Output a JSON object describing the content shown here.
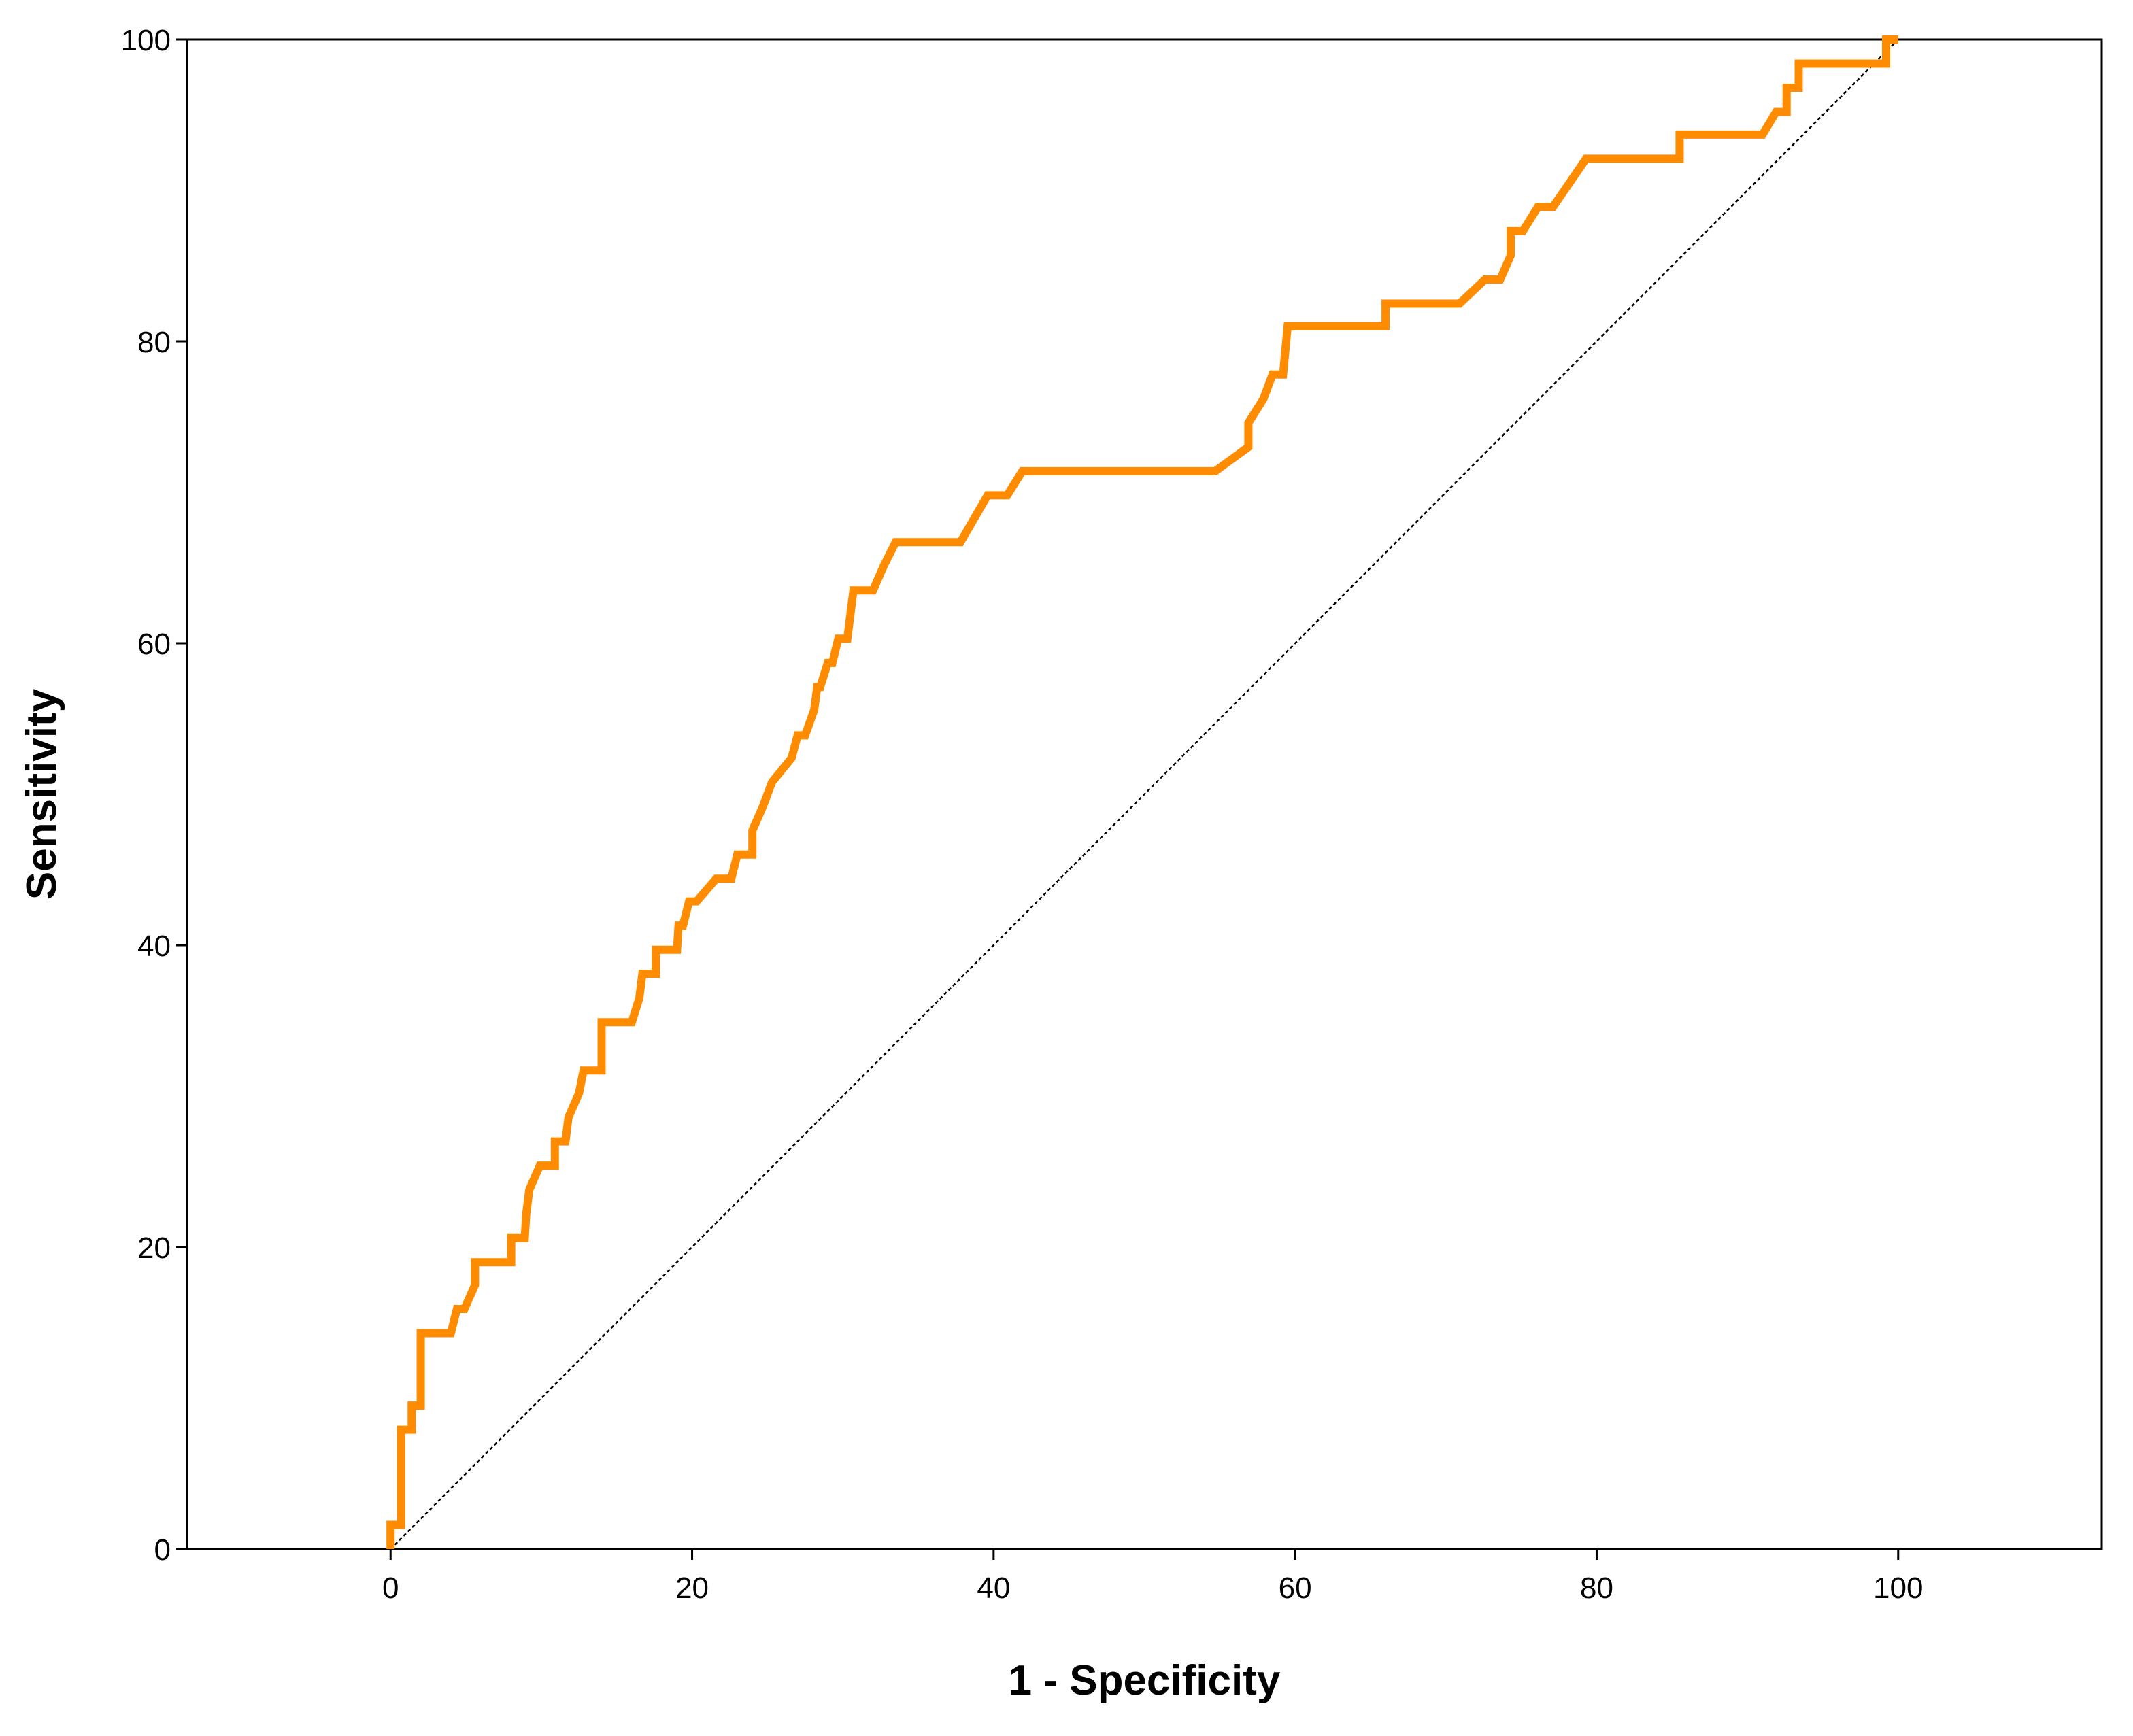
{
  "chart_data": {
    "type": "line",
    "title": "",
    "xlabel": "1 - Specificity",
    "ylabel": "Sensitivity",
    "xlim": [
      -13.5,
      113.5
    ],
    "ylim": [
      0,
      100
    ],
    "x_ticks": [
      "0",
      "20",
      "40",
      "60",
      "80",
      "100"
    ],
    "y_ticks": [
      "0",
      "20",
      "40",
      "60",
      "80",
      "100"
    ],
    "grid": false,
    "legend": "none",
    "colors": {
      "roc_curve": "#FF8C00",
      "reference_line": "#000000",
      "frame": "#000000"
    },
    "series": [
      {
        "style": "step-line",
        "x": [
          0,
          0,
          0.7,
          0.7,
          1.4,
          1.4,
          2,
          2,
          4,
          4.4,
          4.9,
          5.6,
          5.6,
          8,
          8,
          8.9,
          9,
          9.2,
          9.9,
          10.9,
          10.9,
          11.6,
          11.8,
          12.5,
          12.8,
          14,
          14,
          16,
          16.5,
          16.7,
          16.8,
          17.6,
          17.6,
          19,
          19.1,
          19.4,
          19.8,
          20.3,
          21.6,
          22.6,
          23,
          24,
          24,
          24.7,
          25.3,
          26.6,
          27,
          27.5,
          28.1,
          28.3,
          28.5,
          29,
          29.3,
          29.7,
          30.3,
          30.5,
          30.7,
          32,
          32.7,
          33.5,
          37.8,
          39.6,
          40.9,
          41.9,
          54.7,
          56.9,
          56.9,
          57.9,
          58.5,
          59.2,
          59.5,
          66,
          66,
          70.9,
          72.6,
          73.6,
          74.3,
          74.3,
          75.1,
          76.1,
          77.1,
          78.2,
          79.3,
          80.1,
          85.5,
          85.5,
          91,
          91.9,
          92.6,
          92.6,
          93.4,
          93.4,
          93.7,
          98,
          99.2,
          99.2,
          100
        ],
        "y": [
          0,
          1.6,
          1.6,
          7.9,
          7.9,
          9.5,
          9.5,
          14.3,
          14.3,
          15.9,
          15.9,
          17.5,
          19,
          19,
          20.6,
          20.6,
          22.2,
          23.8,
          25.4,
          25.4,
          27,
          27,
          28.6,
          30.2,
          31.7,
          31.7,
          34.9,
          34.9,
          36.5,
          38.1,
          38.1,
          38.1,
          39.7,
          39.7,
          41.3,
          41.3,
          42.9,
          42.9,
          44.4,
          44.4,
          46,
          46,
          47.6,
          49.2,
          50.8,
          52.4,
          53.9,
          53.9,
          55.6,
          57.1,
          57.1,
          58.7,
          58.7,
          60.3,
          60.3,
          61.9,
          63.5,
          63.5,
          65.1,
          66.7,
          66.7,
          69.8,
          69.8,
          71.4,
          71.4,
          73,
          74.6,
          76.2,
          77.8,
          77.8,
          81,
          81,
          82.5,
          82.5,
          84.1,
          84.1,
          85.7,
          87.3,
          87.3,
          88.9,
          88.9,
          90.5,
          92.1,
          92.1,
          92.1,
          93.7,
          93.7,
          95.2,
          95.2,
          96.8,
          96.8,
          98.4,
          98.4,
          98.4,
          98.4,
          100,
          100
        ]
      },
      {
        "style": "reference-diagonal",
        "x": [
          0,
          100
        ],
        "y": [
          0,
          100
        ]
      }
    ]
  }
}
